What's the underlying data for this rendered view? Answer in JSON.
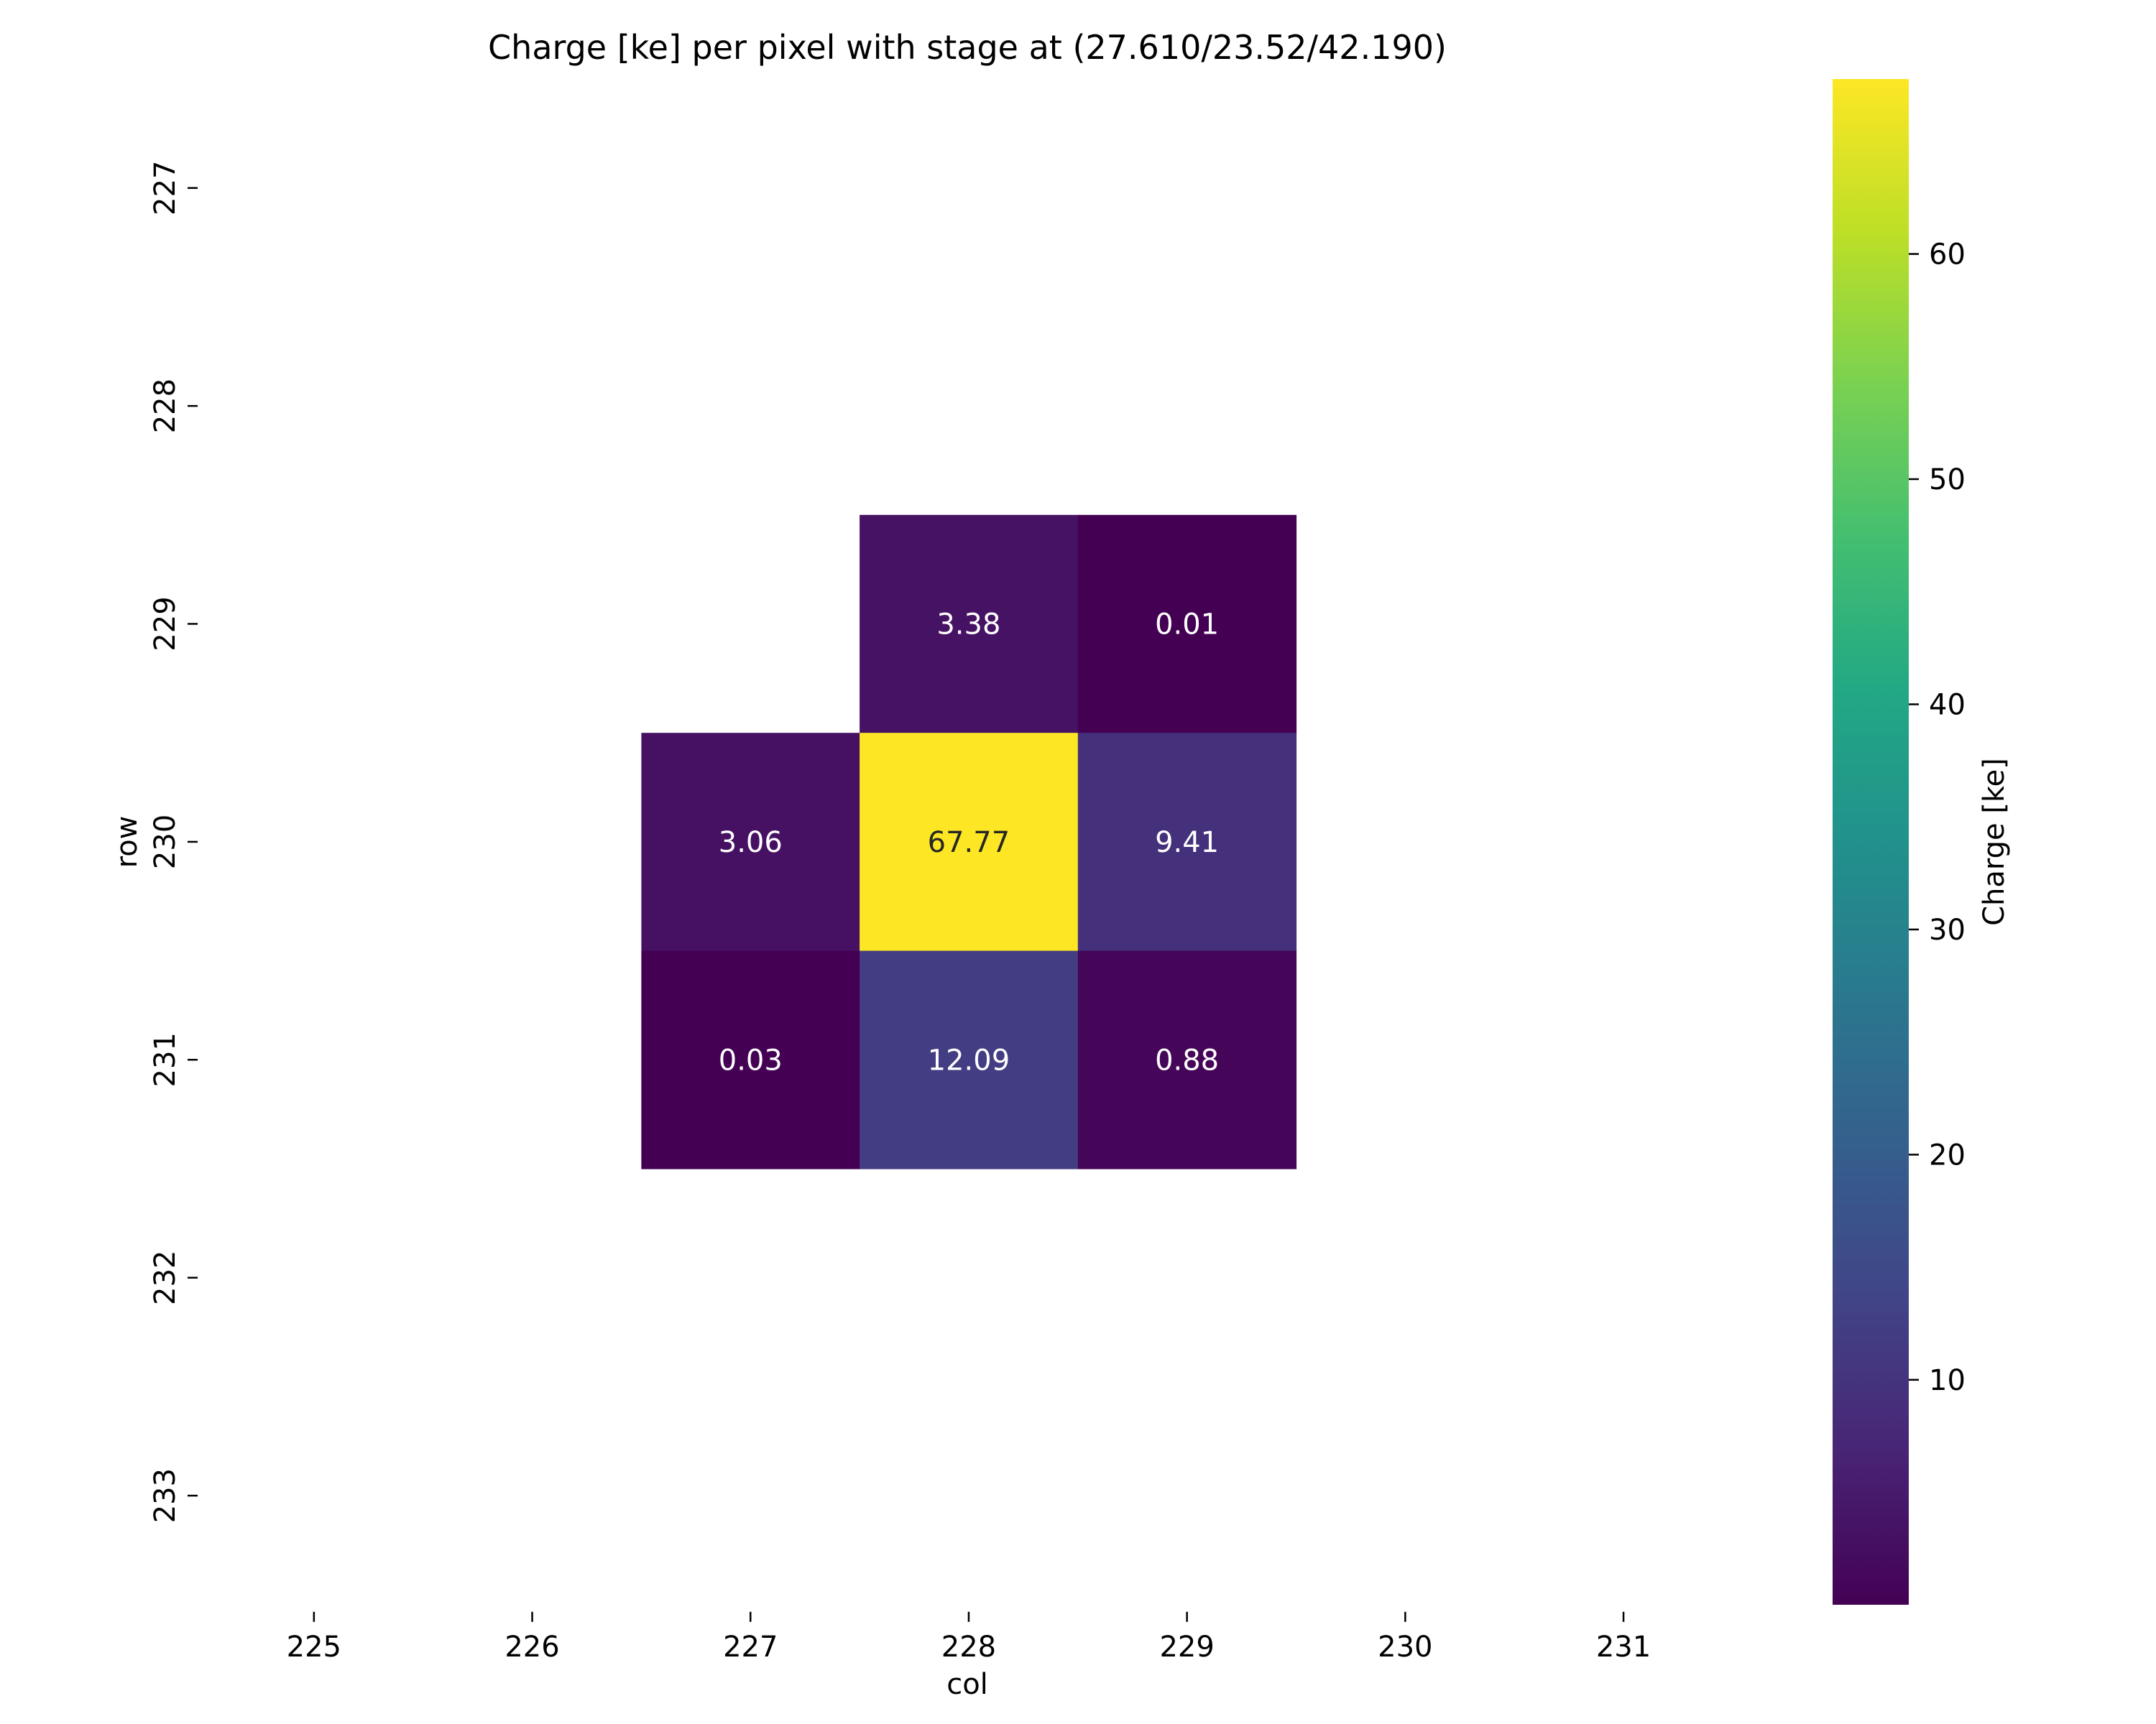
{
  "chart_data": {
    "type": "heatmap",
    "title": "Charge [ke] per pixel with stage at (27.610/23.52/42.190)",
    "xlabel": "col",
    "ylabel": "row",
    "x_categories": [
      "225",
      "226",
      "227",
      "228",
      "229",
      "230",
      "231"
    ],
    "y_categories": [
      "227",
      "228",
      "229",
      "230",
      "231",
      "232",
      "233"
    ],
    "cells": [
      {
        "col": "228",
        "row": "229",
        "value": 3.38,
        "label": "3.38"
      },
      {
        "col": "229",
        "row": "229",
        "value": 0.01,
        "label": "0.01"
      },
      {
        "col": "227",
        "row": "230",
        "value": 3.06,
        "label": "3.06"
      },
      {
        "col": "228",
        "row": "230",
        "value": 67.77,
        "label": "67.77"
      },
      {
        "col": "229",
        "row": "230",
        "value": 9.41,
        "label": "9.41"
      },
      {
        "col": "227",
        "row": "231",
        "value": 0.03,
        "label": "0.03"
      },
      {
        "col": "228",
        "row": "231",
        "value": 12.09,
        "label": "12.09"
      },
      {
        "col": "229",
        "row": "231",
        "value": 0.88,
        "label": "0.88"
      }
    ],
    "colorbar": {
      "label": "Charge [ke]",
      "colormap": "viridis",
      "range": [
        0.01,
        67.77
      ],
      "ticks": [
        "10",
        "20",
        "30",
        "40",
        "50",
        "60"
      ]
    },
    "grid": false,
    "legend": "right"
  }
}
